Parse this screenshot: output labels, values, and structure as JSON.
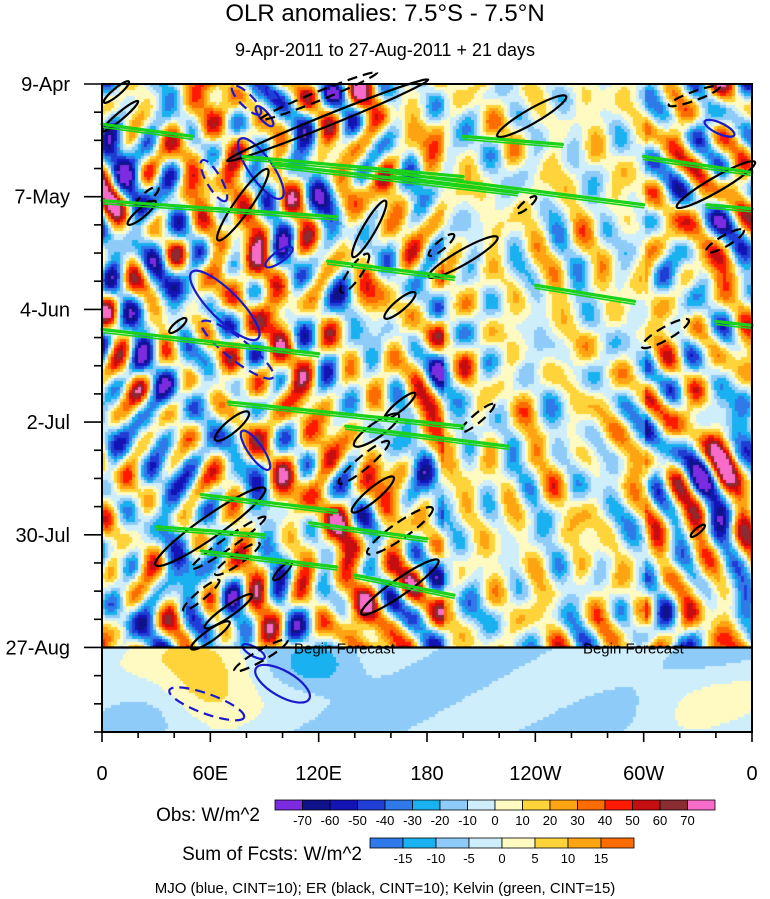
{
  "chart_data": {
    "type": "heatmap",
    "title": "OLR anomalies: 7.5°S - 7.5°N",
    "subtitle": "9-Apr-2011 to 27-Aug-2011 + 21 days",
    "x_axis": {
      "variable": "longitude",
      "range_deg_east": [
        0,
        360
      ],
      "tick_values_deg_east": [
        0,
        60,
        120,
        180,
        240,
        300,
        360
      ],
      "tick_labels": [
        "0",
        "60E",
        "120E",
        "180",
        "120W",
        "60W",
        "0"
      ]
    },
    "y_axis": {
      "variable": "time",
      "range_days": [
        0,
        161
      ],
      "direction": "downward",
      "tick_values_days": [
        0,
        28,
        56,
        84,
        112,
        140
      ],
      "tick_labels": [
        "9-Apr",
        "7-May",
        "4-Jun",
        "2-Jul",
        "30-Jul",
        "27-Aug"
      ]
    },
    "forecast": {
      "start_day": 140,
      "label": "Begin Forecast",
      "label_longitudes": [
        90,
        250
      ]
    },
    "obs_colorbar": {
      "label": "Obs: W/m^2",
      "levels": [
        -70,
        -60,
        -50,
        -40,
        -30,
        -20,
        -10,
        0,
        10,
        20,
        30,
        40,
        50,
        60,
        70
      ],
      "colors": [
        "#7b2be0",
        "#10128a",
        "#1414b5",
        "#1f3ed6",
        "#2f7ae8",
        "#19b1f0",
        "#8ecbf8",
        "#cfeefc",
        "#fffac2",
        "#fed43a",
        "#fea412",
        "#fd6c00",
        "#ff1a00",
        "#c40e12",
        "#8a2c32",
        "#f66cc8"
      ]
    },
    "fcst_colorbar": {
      "label": "Sum of Fcsts: W/m^2",
      "levels": [
        -15,
        -10,
        -5,
        0,
        5,
        10,
        15
      ],
      "colors": [
        "#2f7ae8",
        "#19b1f0",
        "#8ecbf8",
        "#cfeefc",
        "#fffac2",
        "#fed43a",
        "#fea412",
        "#fd6c00"
      ]
    },
    "contours": {
      "caption": "MJO (blue, CINT=10); ER (black, CINT=10); Kelvin (green, CINT=15)",
      "colors": {
        "mjo": "#1a1acc",
        "er": "#000000",
        "kelvin": "#19d219"
      },
      "features": [
        {
          "type": "mjo",
          "lon": 88,
          "day": 21,
          "len_deg": 40,
          "width_deg": 13,
          "angle_deg": 55
        },
        {
          "type": "mjo",
          "lon": 68,
          "day": 55,
          "len_deg": 52,
          "width_deg": 16,
          "angle_deg": 45
        },
        {
          "type": "mjo",
          "lon": 98,
          "day": 43,
          "len_deg": 18,
          "width_deg": 6,
          "angle_deg": -35
        },
        {
          "type": "mjo",
          "lon": 85,
          "day": 91,
          "len_deg": 26,
          "width_deg": 8,
          "angle_deg": 55
        },
        {
          "type": "mjo",
          "lon": 100,
          "day": 149,
          "len_deg": 34,
          "width_deg": 14,
          "angle_deg": 30
        },
        {
          "type": "mjo",
          "lon": 84,
          "day": 141,
          "len_deg": 14,
          "width_deg": 5,
          "angle_deg": 30
        },
        {
          "type": "mjo",
          "lon": 342,
          "day": 11,
          "len_deg": 18,
          "width_deg": 6,
          "angle_deg": 25
        },
        {
          "type": "mjo",
          "lon": 90,
          "day": 8,
          "len_deg": 14,
          "width_deg": 5,
          "angle_deg": 50
        },
        {
          "type": "mjo",
          "lon": 58,
          "day": 154,
          "len_deg": 44,
          "width_deg": 11,
          "angle_deg": 20,
          "dashed": true
        },
        {
          "type": "mjo",
          "lon": 80,
          "day": 4,
          "len_deg": 22,
          "width_deg": 7,
          "angle_deg": 45,
          "dashed": true
        },
        {
          "type": "mjo",
          "lon": 62,
          "day": 24,
          "len_deg": 26,
          "width_deg": 8,
          "angle_deg": 60,
          "dashed": true
        },
        {
          "type": "mjo",
          "lon": 95,
          "day": 3,
          "len_deg": 12,
          "width_deg": 4,
          "angle_deg": 50,
          "dashed": true
        },
        {
          "type": "mjo",
          "lon": 75,
          "day": 66,
          "len_deg": 50,
          "width_deg": 12,
          "angle_deg": 38,
          "dashed": true
        },
        {
          "type": "er",
          "lon": 8,
          "day": 2,
          "len_deg": 18,
          "width_deg": 4,
          "angle_deg": -40
        },
        {
          "type": "er",
          "lon": 10,
          "day": 8,
          "len_deg": 26,
          "width_deg": 4,
          "angle_deg": -40
        },
        {
          "type": "er",
          "lon": 78,
          "day": 30,
          "len_deg": 48,
          "width_deg": 9,
          "angle_deg": -55
        },
        {
          "type": "er",
          "lon": 125,
          "day": 9,
          "len_deg": 120,
          "width_deg": 6,
          "angle_deg": -22
        },
        {
          "type": "er",
          "lon": 120,
          "day": 3,
          "len_deg": 70,
          "width_deg": 5,
          "angle_deg": -22,
          "dashed": true
        },
        {
          "type": "er",
          "lon": 148,
          "day": 36,
          "len_deg": 36,
          "width_deg": 7,
          "angle_deg": -60
        },
        {
          "type": "er",
          "lon": 200,
          "day": 43,
          "len_deg": 44,
          "width_deg": 8,
          "angle_deg": -30
        },
        {
          "type": "er",
          "lon": 238,
          "day": 8,
          "len_deg": 44,
          "width_deg": 8,
          "angle_deg": -30
        },
        {
          "type": "er",
          "lon": 340,
          "day": 25,
          "len_deg": 50,
          "width_deg": 8,
          "angle_deg": -30
        },
        {
          "type": "er",
          "lon": 328,
          "day": 3,
          "len_deg": 30,
          "width_deg": 5,
          "angle_deg": -20,
          "dashed": true
        },
        {
          "type": "er",
          "lon": 235,
          "day": 30,
          "len_deg": 14,
          "width_deg": 4,
          "angle_deg": -40,
          "dashed": true
        },
        {
          "type": "er",
          "lon": 188,
          "day": 40,
          "len_deg": 18,
          "width_deg": 5,
          "angle_deg": -40,
          "dashed": true
        },
        {
          "type": "er",
          "lon": 345,
          "day": 39,
          "len_deg": 24,
          "width_deg": 6,
          "angle_deg": -30,
          "dashed": true
        },
        {
          "type": "er",
          "lon": 25,
          "day": 28,
          "len_deg": 16,
          "width_deg": 5,
          "angle_deg": -40,
          "dashed": true
        },
        {
          "type": "er",
          "lon": 22,
          "day": 32,
          "len_deg": 20,
          "width_deg": 5,
          "angle_deg": -40
        },
        {
          "type": "er",
          "lon": 140,
          "day": 47,
          "len_deg": 26,
          "width_deg": 7,
          "angle_deg": -55,
          "dashed": true
        },
        {
          "type": "er",
          "lon": 165,
          "day": 55,
          "len_deg": 22,
          "width_deg": 6,
          "angle_deg": -40
        },
        {
          "type": "er",
          "lon": 42,
          "day": 60,
          "len_deg": 12,
          "width_deg": 4,
          "angle_deg": -40
        },
        {
          "type": "er",
          "lon": 312,
          "day": 62,
          "len_deg": 30,
          "width_deg": 7,
          "angle_deg": -30,
          "dashed": true
        },
        {
          "type": "er",
          "lon": 72,
          "day": 85,
          "len_deg": 24,
          "width_deg": 7,
          "angle_deg": -40
        },
        {
          "type": "er",
          "lon": 152,
          "day": 86,
          "len_deg": 30,
          "width_deg": 8,
          "angle_deg": -35
        },
        {
          "type": "er",
          "lon": 145,
          "day": 94,
          "len_deg": 36,
          "width_deg": 7,
          "angle_deg": -40,
          "dashed": true
        },
        {
          "type": "er",
          "lon": 165,
          "day": 80,
          "len_deg": 22,
          "width_deg": 5,
          "angle_deg": -40
        },
        {
          "type": "er",
          "lon": 208,
          "day": 83,
          "len_deg": 24,
          "width_deg": 5,
          "angle_deg": -40,
          "dashed": true
        },
        {
          "type": "er",
          "lon": 60,
          "day": 110,
          "len_deg": 74,
          "width_deg": 12,
          "angle_deg": -35
        },
        {
          "type": "er",
          "lon": 70,
          "day": 114,
          "len_deg": 50,
          "width_deg": 6,
          "angle_deg": -35,
          "dashed": true
        },
        {
          "type": "er",
          "lon": 150,
          "day": 102,
          "len_deg": 30,
          "width_deg": 7,
          "angle_deg": -40
        },
        {
          "type": "er",
          "lon": 165,
          "day": 111,
          "len_deg": 44,
          "width_deg": 9,
          "angle_deg": -35,
          "dashed": true
        },
        {
          "type": "er",
          "lon": 165,
          "day": 125,
          "len_deg": 52,
          "width_deg": 9,
          "angle_deg": -35
        },
        {
          "type": "er",
          "lon": 75,
          "day": 118,
          "len_deg": 30,
          "width_deg": 6,
          "angle_deg": -35,
          "dashed": true
        },
        {
          "type": "er",
          "lon": 100,
          "day": 121,
          "len_deg": 14,
          "width_deg": 4,
          "angle_deg": -45
        },
        {
          "type": "er",
          "lon": 60,
          "day": 137,
          "len_deg": 26,
          "width_deg": 6,
          "angle_deg": -35
        },
        {
          "type": "er",
          "lon": 70,
          "day": 131,
          "len_deg": 32,
          "width_deg": 6,
          "angle_deg": -35
        },
        {
          "type": "er",
          "lon": 55,
          "day": 127,
          "len_deg": 26,
          "width_deg": 5,
          "angle_deg": -40,
          "dashed": true
        },
        {
          "type": "er",
          "lon": 330,
          "day": 111,
          "len_deg": 10,
          "width_deg": 3,
          "angle_deg": -40
        },
        {
          "type": "er",
          "lon": 88,
          "day": 142,
          "len_deg": 34,
          "width_deg": 6,
          "angle_deg": -30,
          "dashed": true
        },
        {
          "type": "kelvin",
          "lon0": 0,
          "day0": 10,
          "lon1": 50,
          "day1": 13
        },
        {
          "type": "kelvin",
          "lon0": 78,
          "day0": 18,
          "lon1": 200,
          "day1": 23
        },
        {
          "type": "kelvin",
          "lon0": 200,
          "day0": 13,
          "lon1": 255,
          "day1": 15
        },
        {
          "type": "kelvin",
          "lon0": 95,
          "day0": 20,
          "lon1": 230,
          "day1": 27
        },
        {
          "type": "kelvin",
          "lon0": 160,
          "day0": 22,
          "lon1": 300,
          "day1": 30
        },
        {
          "type": "kelvin",
          "lon0": 0,
          "day0": 29,
          "lon1": 130,
          "day1": 33
        },
        {
          "type": "kelvin",
          "lon0": 125,
          "day0": 44,
          "lon1": 195,
          "day1": 48
        },
        {
          "type": "kelvin",
          "lon0": 240,
          "day0": 50,
          "lon1": 295,
          "day1": 54
        },
        {
          "type": "kelvin",
          "lon0": 0,
          "day0": 61,
          "lon1": 120,
          "day1": 67
        },
        {
          "type": "kelvin",
          "lon0": 300,
          "day0": 18,
          "lon1": 360,
          "day1": 22
        },
        {
          "type": "kelvin",
          "lon0": 335,
          "day0": 30,
          "lon1": 360,
          "day1": 31
        },
        {
          "type": "kelvin",
          "lon0": 340,
          "day0": 59,
          "lon1": 360,
          "day1": 60
        },
        {
          "type": "kelvin",
          "lon0": 70,
          "day0": 79,
          "lon1": 200,
          "day1": 85
        },
        {
          "type": "kelvin",
          "lon0": 135,
          "day0": 85,
          "lon1": 225,
          "day1": 90
        },
        {
          "type": "kelvin",
          "lon0": 55,
          "day0": 102,
          "lon1": 130,
          "day1": 106
        },
        {
          "type": "kelvin",
          "lon0": 115,
          "day0": 109,
          "lon1": 180,
          "day1": 113
        },
        {
          "type": "kelvin",
          "lon0": 55,
          "day0": 116,
          "lon1": 130,
          "day1": 120
        },
        {
          "type": "kelvin",
          "lon0": 140,
          "day0": 122,
          "lon1": 195,
          "day1": 127
        },
        {
          "type": "kelvin",
          "lon0": 30,
          "day0": 110,
          "lon1": 90,
          "day1": 112
        }
      ]
    }
  }
}
